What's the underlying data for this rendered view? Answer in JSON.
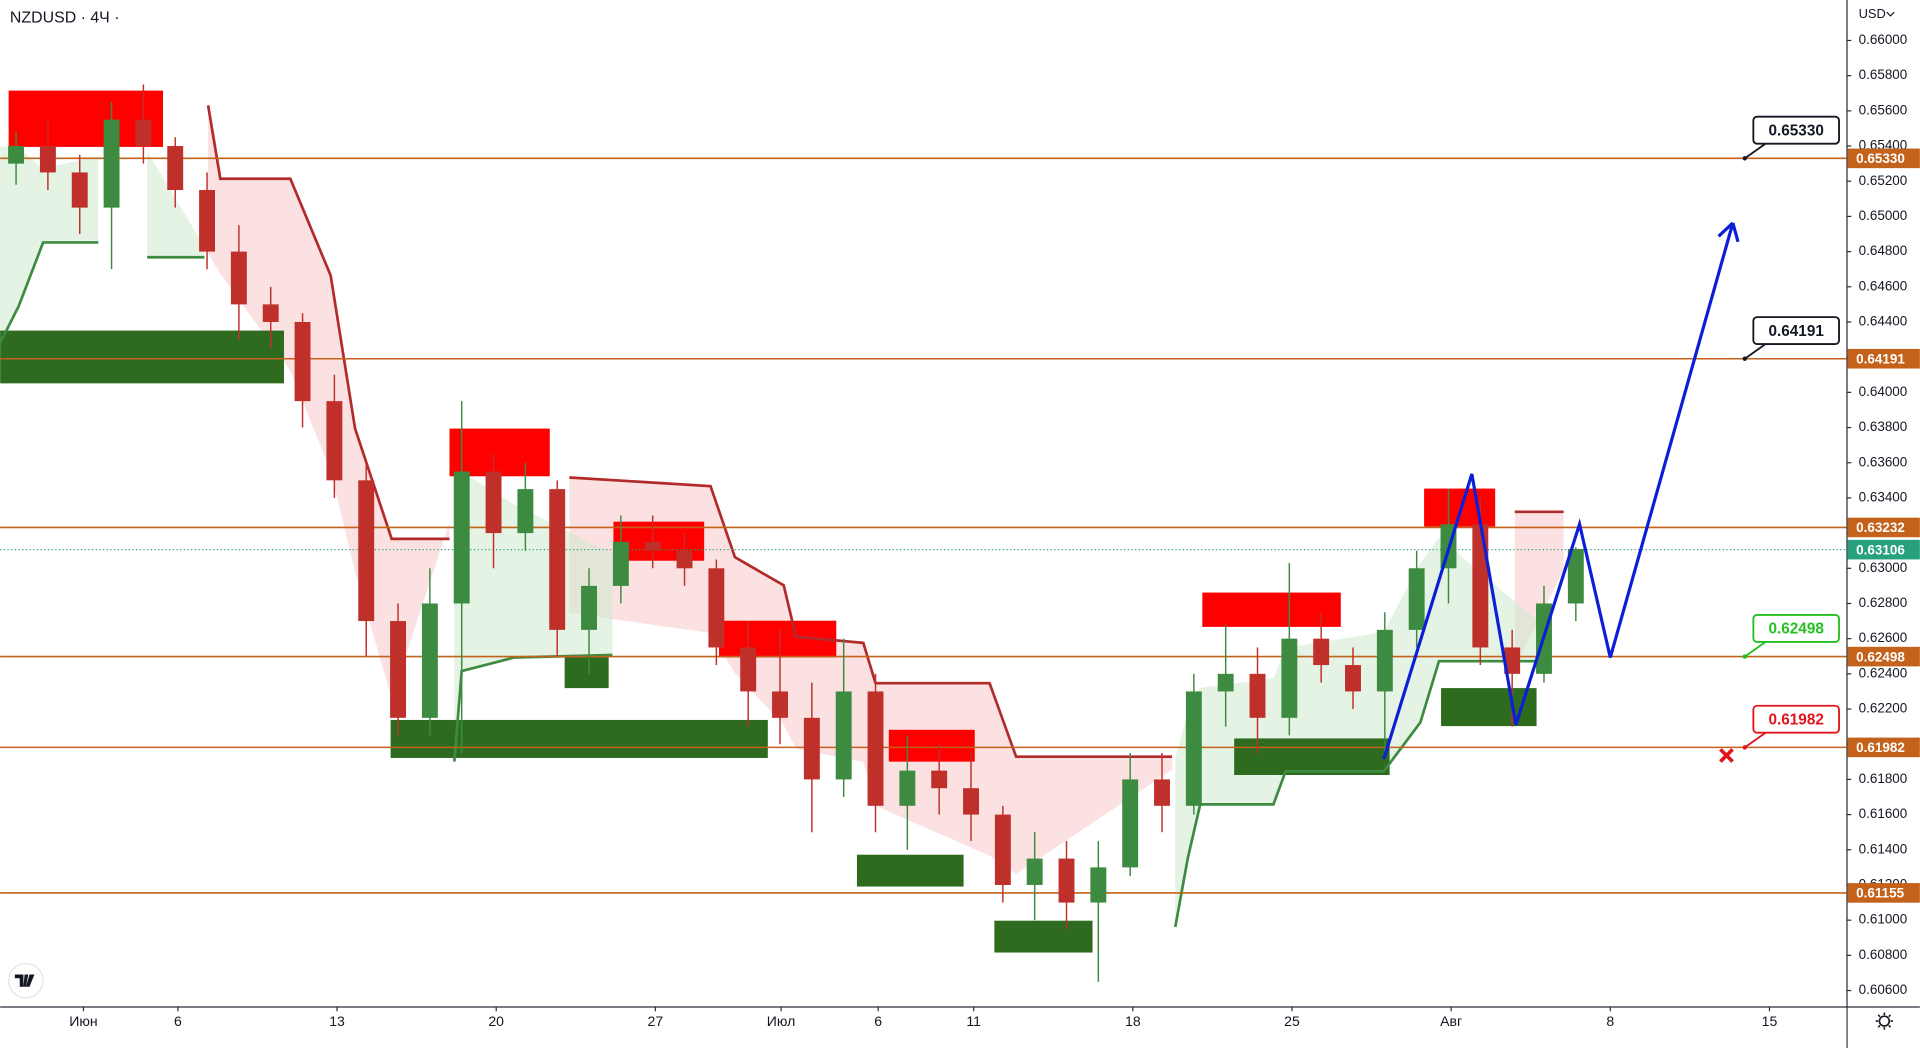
{
  "chart_data": {
    "type": "candlestick",
    "title": "NZDUSD · 4Ч ·",
    "currency": "USD",
    "up_color": "#3d8b40",
    "down_color": "#c0302a",
    "xlim": [
      0,
      348
    ],
    "ylim": [
      0.6051,
      0.6623
    ],
    "xticks": [
      {
        "value": 15.7,
        "label": "Июн"
      },
      {
        "value": 33.5,
        "label": "6"
      },
      {
        "value": 63.5,
        "label": "13"
      },
      {
        "value": 93.5,
        "label": "20"
      },
      {
        "value": 123.5,
        "label": "27"
      },
      {
        "value": 147.2,
        "label": "Июл"
      },
      {
        "value": 165.5,
        "label": "6"
      },
      {
        "value": 183.5,
        "label": "11"
      },
      {
        "value": 213.5,
        "label": "18"
      },
      {
        "value": 243.5,
        "label": "25"
      },
      {
        "value": 273.5,
        "label": "Авг"
      },
      {
        "value": 303.5,
        "label": "8"
      },
      {
        "value": 333.5,
        "label": "15"
      }
    ],
    "yticks": [
      {
        "value": 0.606,
        "label": "0.60600"
      },
      {
        "value": 0.608,
        "label": "0.60800"
      },
      {
        "value": 0.61,
        "label": "0.61000"
      },
      {
        "value": 0.612,
        "label": "0.61200"
      },
      {
        "value": 0.614,
        "label": "0.61400"
      },
      {
        "value": 0.616,
        "label": "0.61600"
      },
      {
        "value": 0.618,
        "label": "0.61800"
      },
      {
        "value": 0.62,
        "label": "0.62000"
      },
      {
        "value": 0.622,
        "label": "0.62200"
      },
      {
        "value": 0.624,
        "label": "0.62400"
      },
      {
        "value": 0.626,
        "label": "0.62600"
      },
      {
        "value": 0.628,
        "label": "0.62800"
      },
      {
        "value": 0.63,
        "label": "0.63000"
      },
      {
        "value": 0.632,
        "label": "0.63200"
      },
      {
        "value": 0.634,
        "label": "0.63400"
      },
      {
        "value": 0.636,
        "label": "0.63600"
      },
      {
        "value": 0.638,
        "label": "0.63800"
      },
      {
        "value": 0.64,
        "label": "0.64000"
      },
      {
        "value": 0.642,
        "label": "0.64200"
      },
      {
        "value": 0.644,
        "label": "0.64400"
      },
      {
        "value": 0.646,
        "label": "0.64600"
      },
      {
        "value": 0.648,
        "label": "0.64800"
      },
      {
        "value": 0.65,
        "label": "0.65000"
      },
      {
        "value": 0.652,
        "label": "0.65200"
      },
      {
        "value": 0.654,
        "label": "0.65400"
      },
      {
        "value": 0.656,
        "label": "0.65600"
      },
      {
        "value": 0.658,
        "label": "0.65800"
      },
      {
        "value": 0.66,
        "label": "0.66000"
      }
    ],
    "x": [
      3,
      9,
      15,
      21,
      27,
      33,
      39,
      45,
      51,
      57,
      63,
      69,
      75,
      81,
      87,
      93,
      99,
      105,
      111,
      117,
      123,
      129,
      135,
      141,
      147,
      153,
      159,
      165,
      171,
      177,
      183,
      189,
      195,
      201,
      207,
      213,
      219,
      225,
      231,
      237,
      243,
      249,
      255,
      261,
      267,
      273,
      279,
      285,
      291,
      297
    ],
    "open": [
      0.653,
      0.654,
      0.6525,
      0.6505,
      0.6555,
      0.654,
      0.6515,
      0.648,
      0.645,
      0.644,
      0.6395,
      0.635,
      0.627,
      0.6215,
      0.628,
      0.6355,
      0.632,
      0.6345,
      0.6265,
      0.629,
      0.6315,
      0.631,
      0.63,
      0.6255,
      0.623,
      0.6215,
      0.618,
      0.623,
      0.6165,
      0.6185,
      0.6175,
      0.616,
      0.612,
      0.6135,
      0.611,
      0.613,
      0.618,
      0.6165,
      0.623,
      0.624,
      0.6215,
      0.626,
      0.6245,
      0.623,
      0.6265,
      0.63,
      0.6325,
      0.6255,
      0.624,
      0.628
    ],
    "high": [
      0.6548,
      0.6555,
      0.6535,
      0.6565,
      0.6575,
      0.6545,
      0.6525,
      0.6495,
      0.646,
      0.6445,
      0.641,
      0.636,
      0.628,
      0.63,
      0.6395,
      0.6365,
      0.636,
      0.635,
      0.63,
      0.633,
      0.633,
      0.632,
      0.6305,
      0.627,
      0.6265,
      0.6235,
      0.626,
      0.624,
      0.6205,
      0.62,
      0.6195,
      0.6165,
      0.615,
      0.6145,
      0.6145,
      0.6195,
      0.6195,
      0.624,
      0.6268,
      0.6255,
      0.6303,
      0.6275,
      0.6255,
      0.6275,
      0.631,
      0.6345,
      0.634,
      0.6265,
      0.629,
      0.6312
    ],
    "low": [
      0.6518,
      0.6515,
      0.649,
      0.647,
      0.653,
      0.6505,
      0.647,
      0.643,
      0.6425,
      0.638,
      0.634,
      0.625,
      0.6205,
      0.6205,
      0.6195,
      0.63,
      0.631,
      0.625,
      0.624,
      0.628,
      0.63,
      0.629,
      0.6245,
      0.621,
      0.62,
      0.615,
      0.617,
      0.615,
      0.614,
      0.616,
      0.6145,
      0.611,
      0.61,
      0.6095,
      0.6065,
      0.6125,
      0.615,
      0.616,
      0.621,
      0.6195,
      0.6205,
      0.6235,
      0.622,
      0.6195,
      0.6255,
      0.628,
      0.6245,
      0.621,
      0.6235,
      0.627
    ],
    "close": [
      0.654,
      0.6525,
      0.6505,
      0.6555,
      0.654,
      0.6515,
      0.648,
      0.645,
      0.644,
      0.6395,
      0.635,
      0.627,
      0.6215,
      0.628,
      0.6355,
      0.632,
      0.6345,
      0.6265,
      0.629,
      0.6315,
      0.631,
      0.63,
      0.6255,
      0.623,
      0.6215,
      0.618,
      0.623,
      0.6165,
      0.6185,
      0.6175,
      0.616,
      0.612,
      0.6135,
      0.611,
      0.613,
      0.618,
      0.6165,
      0.623,
      0.624,
      0.6215,
      0.626,
      0.6245,
      0.623,
      0.6265,
      0.63,
      0.6325,
      0.6255,
      0.624,
      0.628,
      0.6311
    ],
    "indicator": [
      {
        "color": "#b22a2a",
        "fill": "#f7c9c9",
        "x": [
          39.2,
          41.5,
          54.7,
          62.3,
          66.9,
          73.8,
          84.7,
          null,
          107.3,
          133.9,
          138.5,
          147.7,
          150,
          162.7,
          165,
          186.5,
          191.5,
          220.9,
          null,
          285.5,
          294.7
        ],
        "y": [
          0.65631,
          0.65214,
          0.65214,
          0.64664,
          0.63794,
          0.63167,
          0.63167,
          null,
          0.63516,
          0.63467,
          0.63063,
          0.62903,
          0.62611,
          0.62576,
          0.62347,
          0.62347,
          0.61929,
          0.61929,
          null,
          0.63321,
          0.63321
        ]
      },
      {
        "color": "#3d8b40",
        "fill": "#cfe9cf",
        "x": [
          0,
          3.5,
          8.1,
          18.5,
          null,
          27.7,
          38.5,
          null,
          85.6,
          87,
          96.9,
          115.4,
          null,
          221.5,
          223.9,
          226.2,
          240,
          242.3,
          260.8,
          267.7,
          271.2,
          289.6
        ],
        "y": [
          0.64281,
          0.6449,
          0.64852,
          0.64852,
          null,
          0.64768,
          0.64768,
          null,
          0.61901,
          0.62416,
          0.62493,
          0.62507,
          null,
          0.60962,
          0.61358,
          0.61658,
          0.61658,
          0.61846,
          0.61846,
          0.62124,
          0.62472,
          0.62472
        ]
      }
    ],
    "zones": [
      {
        "color": "#ff0000",
        "x": [
          1.6,
          30.7
        ],
        "y": [
          0.65395,
          0.65715
        ]
      },
      {
        "color": "#2e6b1f",
        "x": [
          0,
          53.5
        ],
        "y": [
          0.64051,
          0.64351
        ]
      },
      {
        "color": "#ff0000",
        "x": [
          84.7,
          103.6
        ],
        "y": [
          0.63523,
          0.63794
        ]
      },
      {
        "color": "#2e6b1f",
        "x": [
          106.4,
          114.7
        ],
        "y": [
          0.62319,
          0.62507
        ]
      },
      {
        "color": "#ff0000",
        "x": [
          115.6,
          132.7
        ],
        "y": [
          0.63043,
          0.63265
        ]
      },
      {
        "color": "#2e6b1f",
        "x": [
          73.6,
          144.7
        ],
        "y": [
          0.61922,
          0.62138
        ]
      },
      {
        "color": "#ff0000",
        "x": [
          135.5,
          157.6
        ],
        "y": [
          0.62493,
          0.62702
        ]
      },
      {
        "color": "#ff0000",
        "x": [
          167.5,
          183.7
        ],
        "y": [
          0.61901,
          0.62082
        ]
      },
      {
        "color": "#2e6b1f",
        "x": [
          161.5,
          181.6
        ],
        "y": [
          0.61191,
          0.61372
        ]
      },
      {
        "color": "#2e6b1f",
        "x": [
          187.4,
          205.9
        ],
        "y": [
          0.60816,
          0.60997
        ]
      },
      {
        "color": "#ff0000",
        "x": [
          226.6,
          252.7
        ],
        "y": [
          0.62667,
          0.62862
        ]
      },
      {
        "color": "#2e6b1f",
        "x": [
          232.6,
          261.9
        ],
        "y": [
          0.61825,
          0.62033
        ]
      },
      {
        "color": "#ff0000",
        "x": [
          268.4,
          281.8
        ],
        "y": [
          0.63237,
          0.63453
        ]
      },
      {
        "color": "#2e6b1f",
        "x": [
          271.6,
          289.6
        ],
        "y": [
          0.62103,
          0.62319
        ]
      }
    ],
    "level_color": "#c4621b",
    "levels": [
      {
        "value": 0.6533,
        "label": "0.65330",
        "callout_color": "#131722"
      },
      {
        "value": 0.64191,
        "label": "0.64191",
        "callout_color": "#131722"
      },
      {
        "value": 0.63232,
        "label": "0.63232"
      },
      {
        "value": 0.62498,
        "label": "0.62498",
        "callout_color": "#22c11f"
      },
      {
        "value": 0.61982,
        "label": "0.61982",
        "callout_color": "#e3141b"
      },
      {
        "value": 0.61155,
        "label": "0.61155"
      }
    ],
    "last_price": {
      "value": 0.63106,
      "label": "0.63106",
      "color": "#26a17b"
    },
    "projection": {
      "color": "#0b1fd6",
      "x": [
        260.8,
        277.4,
        285.7,
        297.7,
        303.5,
        326.6
      ],
      "y": [
        0.61915,
        0.63536,
        0.6211,
        0.63251,
        0.62493,
        0.64963
      ]
    },
    "stop_marker": {
      "color": "#e3141b",
      "x": 325.4,
      "y": 0.61936
    }
  }
}
